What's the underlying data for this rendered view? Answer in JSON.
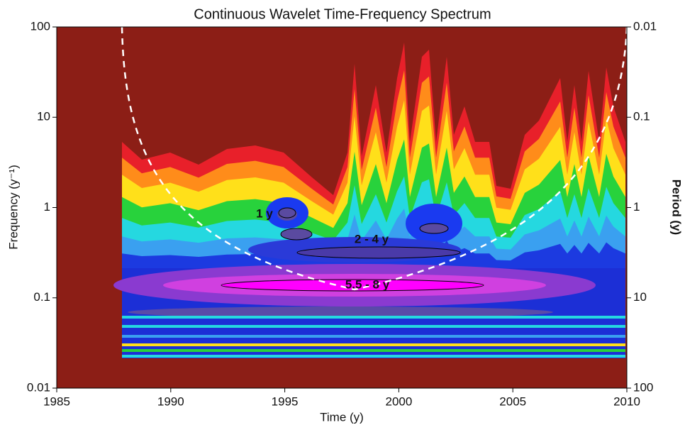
{
  "chart_data": {
    "type": "wavelet",
    "title": "Continuous Wavelet Time-Frequency Spectrum",
    "xlabel": "Time (y)",
    "ylabel": "Frequency (y⁻¹)",
    "y2label": "Period (y)",
    "xlim": [
      1985,
      2010
    ],
    "xticks": [
      1985,
      1990,
      1995,
      2000,
      2005,
      2010
    ],
    "ylim": [
      0.01,
      100
    ],
    "yticks": [
      0.01,
      0.1,
      1,
      10,
      100
    ],
    "ylog": true,
    "y2lim": [
      100,
      0.01
    ],
    "y2ticks": [
      0.01,
      0.1,
      1,
      10,
      100
    ],
    "y2log": true,
    "annotations": [
      "1 y",
      "2 - 4 y",
      "5.5 - 8 y"
    ]
  }
}
